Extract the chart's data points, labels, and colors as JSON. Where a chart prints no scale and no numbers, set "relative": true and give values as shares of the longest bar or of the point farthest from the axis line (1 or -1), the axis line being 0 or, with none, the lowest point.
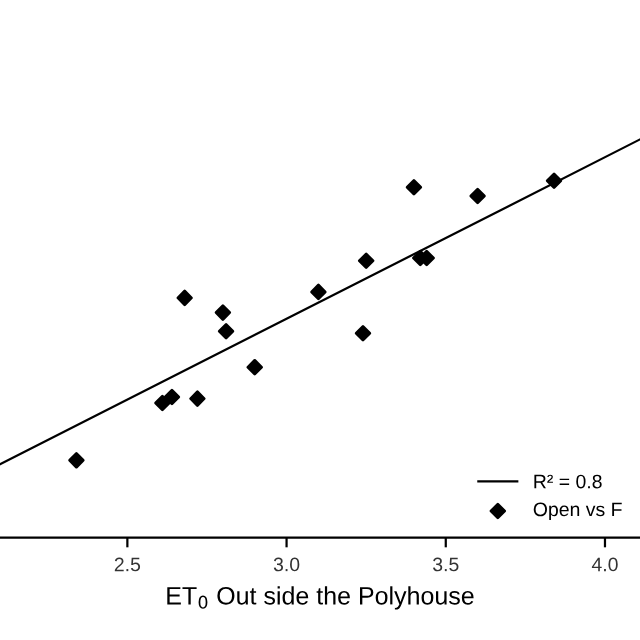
{
  "chart_data": {
    "type": "scatter",
    "relative": true,
    "xlabel": "ET$_{0}$ Out side the Polyhouse",
    "xlim": [
      2.1,
      4.11
    ],
    "xticks": [
      {
        "value": 2.5,
        "label": "2.5"
      },
      {
        "value": 3.0,
        "label": "3.0"
      },
      {
        "value": 3.5,
        "label": "3.5"
      },
      {
        "value": 4.0,
        "label": "4.0"
      }
    ],
    "legend": "bottom right",
    "series": [
      {
        "name": "R² = 0.8",
        "type": "line",
        "color": "#000000",
        "x": [
          2.1,
          4.11
        ],
        "values": [
          0.184,
          1
        ]
      },
      {
        "name": "Open vs F",
        "marker": "diamond",
        "color": "#000000",
        "x": [
          2.34,
          2.61,
          2.64,
          2.72,
          2.68,
          2.8,
          2.81,
          2.9,
          3.1,
          3.25,
          3.24,
          3.4,
          3.42,
          3.44,
          3.6,
          3.84
        ],
        "values": [
          0.194,
          0.338,
          0.353,
          0.349,
          0.602,
          0.565,
          0.518,
          0.428,
          0.617,
          0.695,
          0.513,
          0.88,
          0.702,
          0.702,
          0.858,
          0.896
        ]
      }
    ]
  }
}
